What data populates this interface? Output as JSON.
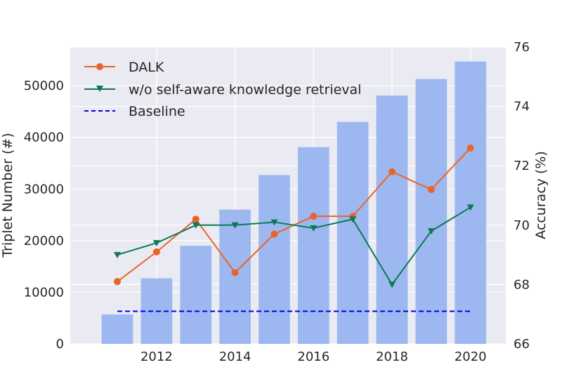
{
  "chart_data": {
    "type": "bar+line",
    "title": "",
    "x": [
      2011,
      2012,
      2013,
      2014,
      2015,
      2016,
      2017,
      2018,
      2019,
      2020
    ],
    "xticks": [
      2012,
      2014,
      2016,
      2018,
      2020
    ],
    "xlim": [
      2009.8,
      2020.9
    ],
    "bar_series": {
      "name": "",
      "axis": "left",
      "color": "#9db8f0",
      "values": [
        5700,
        12700,
        19000,
        26000,
        32700,
        38100,
        43000,
        48100,
        51300,
        54700
      ]
    },
    "line_series": [
      {
        "name": "DALK",
        "axis": "right",
        "color": "#e8642a",
        "marker": "circle",
        "values": [
          68.1,
          69.1,
          70.2,
          68.4,
          69.7,
          70.3,
          70.3,
          71.8,
          71.2,
          72.6
        ]
      },
      {
        "name": "w/o self-aware knowledge retrieval",
        "axis": "right",
        "color": "#0a7a55",
        "marker": "triangle-down",
        "values": [
          69.0,
          69.4,
          70.0,
          70.0,
          70.1,
          69.9,
          70.2,
          68.0,
          69.8,
          70.6
        ]
      }
    ],
    "reference_lines": [
      {
        "name": "Baseline",
        "axis": "right",
        "color": "#0000e6",
        "style": "dashed",
        "value": 67.1,
        "x_range": [
          2011,
          2020
        ]
      }
    ],
    "left_axis": {
      "label": "Triplet Number (#)",
      "ylim": [
        0,
        57500
      ],
      "ticks": [
        0,
        10000,
        20000,
        30000,
        40000,
        50000
      ]
    },
    "right_axis": {
      "label": "Accuracy (%)",
      "ylim": [
        66,
        76
      ],
      "ticks": [
        66,
        68,
        70,
        72,
        74,
        76
      ]
    },
    "grid": true,
    "legend_position": "top-left",
    "legend": [
      {
        "label": "DALK"
      },
      {
        "label": "w/o self-aware knowledge retrieval"
      },
      {
        "label": "Baseline"
      }
    ]
  }
}
